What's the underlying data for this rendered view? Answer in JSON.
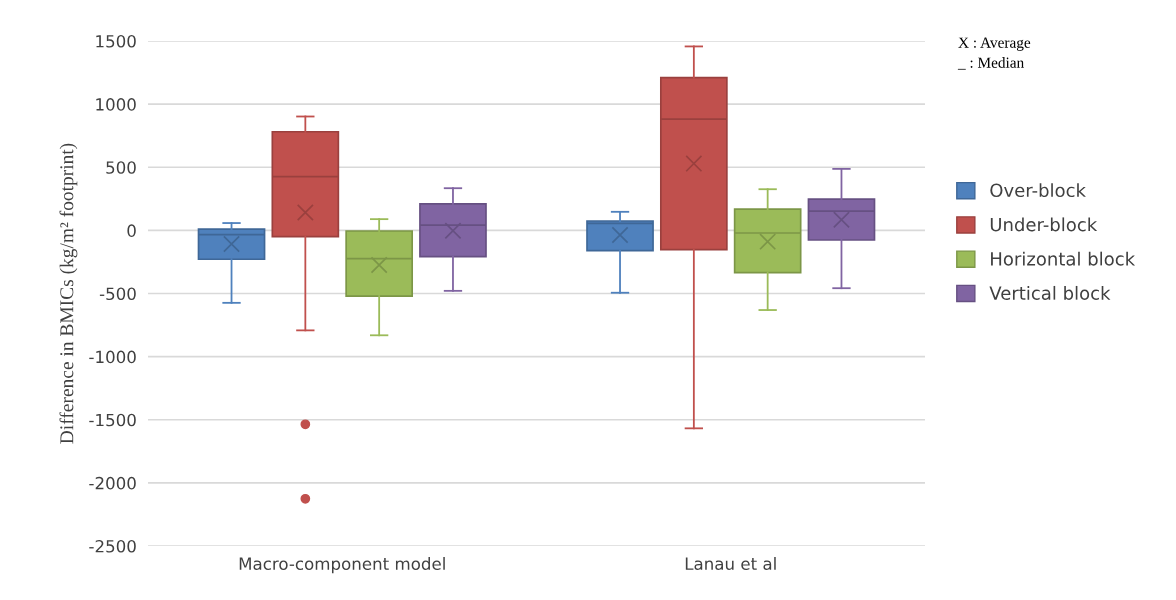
{
  "chart_data": {
    "type": "box",
    "ylabel": "Difference in BMICs (kg/m² footprint)",
    "categories": [
      "Macro-component model",
      "Lanau et al"
    ],
    "ylim": [
      -2500,
      1500
    ],
    "yticks": [
      -2500,
      -2000,
      -1500,
      -1000,
      -500,
      0,
      500,
      1000,
      1500
    ],
    "grid": "y",
    "legend": "right",
    "annotations": [
      "X : Average",
      "_ : Median"
    ],
    "series": [
      {
        "name": "Over-block",
        "color": "#4f81bd",
        "boxes": [
          {
            "low": -574,
            "q1": -229,
            "median": -34,
            "q3": 10,
            "high": 58,
            "mean": -108
          },
          {
            "low": -494,
            "q1": -160,
            "median": 55,
            "q3": 74,
            "high": 147,
            "mean": -37
          }
        ]
      },
      {
        "name": "Under-block",
        "color": "#c0504d",
        "boxes": [
          {
            "low": -792,
            "q1": -50,
            "median": 426,
            "q3": 781,
            "high": 902,
            "mean": 142,
            "outliers": [
              -1536,
              -2126
            ]
          },
          {
            "low": -1568,
            "q1": -153,
            "median": 881,
            "q3": 1210,
            "high": 1457,
            "mean": 529
          }
        ]
      },
      {
        "name": "Horizontal block",
        "color": "#9bbb59",
        "boxes": [
          {
            "low": -831,
            "q1": -521,
            "median": -224,
            "q3": -5,
            "high": 89,
            "mean": -274
          },
          {
            "low": -631,
            "q1": -334,
            "median": -21,
            "q3": 168,
            "high": 326,
            "mean": -89
          }
        ]
      },
      {
        "name": "Vertical block",
        "color": "#8064a2",
        "boxes": [
          {
            "low": -479,
            "q1": -208,
            "median": 42,
            "q3": 210,
            "high": 334,
            "mean": -3
          },
          {
            "low": -458,
            "q1": -76,
            "median": 153,
            "q3": 247,
            "high": 487,
            "mean": 84
          }
        ]
      }
    ]
  }
}
